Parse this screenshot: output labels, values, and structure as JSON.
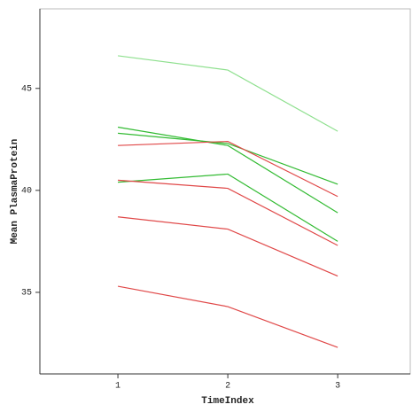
{
  "chart_data": {
    "type": "line",
    "xlabel": "TimeIndex",
    "ylabel": "Mean PlasmaProtein",
    "x": [
      1,
      2,
      3
    ],
    "series": [
      {
        "color": "#8fe08f",
        "values": [
          46.6,
          45.9,
          42.9
        ]
      },
      {
        "color": "#33bb33",
        "values": [
          43.1,
          42.2,
          38.9
        ]
      },
      {
        "color": "#33bb33",
        "values": [
          42.8,
          42.3,
          40.3
        ]
      },
      {
        "color": "#e04848",
        "values": [
          42.2,
          42.4,
          39.7
        ]
      },
      {
        "color": "#33bb33",
        "values": [
          40.4,
          40.8,
          37.5
        ]
      },
      {
        "color": "#e04848",
        "values": [
          40.5,
          40.1,
          37.3
        ]
      },
      {
        "color": "#e04848",
        "values": [
          38.7,
          38.1,
          35.8
        ]
      },
      {
        "color": "#e04848",
        "values": [
          35.3,
          34.3,
          32.3
        ]
      }
    ],
    "xlim": [
      0.29,
      3.66
    ],
    "ylim": [
      31,
      48.9
    ],
    "xticks": [
      1,
      2,
      3
    ],
    "yticks": [
      35,
      40,
      45
    ]
  }
}
